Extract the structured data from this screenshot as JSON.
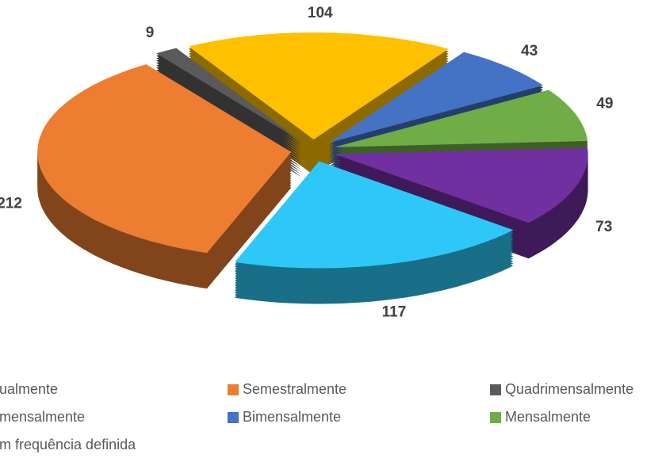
{
  "chart_data": {
    "type": "pie",
    "categories": [
      "ualmente",
      "Semestralmente",
      "Quadrimensalmente",
      "mensalmente",
      "Bimensalmente",
      "Mensalmente",
      "m frequência definida"
    ],
    "values": [
      117,
      212,
      9,
      104,
      43,
      49,
      73
    ],
    "colors": [
      "#2ec8f8",
      "#ed7d31",
      "#5a5a5a",
      "#ffc000",
      "#4472c4",
      "#70ad47",
      "#7030a0"
    ],
    "legend": "bottom"
  }
}
